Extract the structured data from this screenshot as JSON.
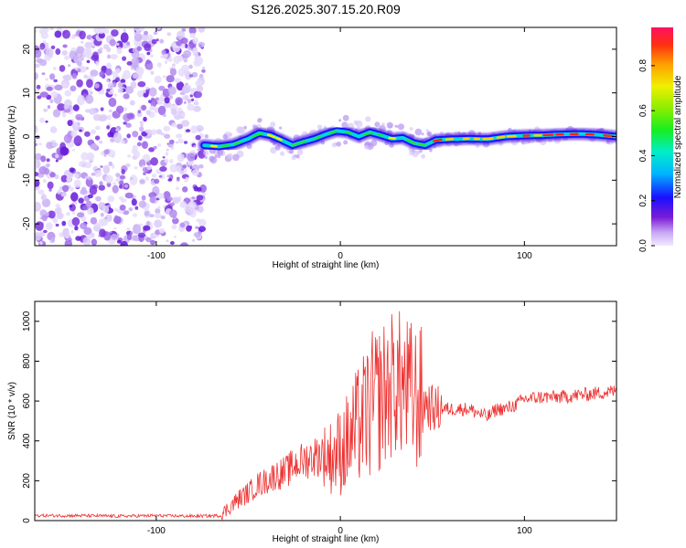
{
  "title": "S126.2025.307.15.20.R09",
  "chart_data": [
    {
      "type": "heatmap",
      "name": "spectrogram",
      "xlabel": "Height of straight line (km)",
      "ylabel": "Frequency (Hz)",
      "xlim": [
        -166,
        150
      ],
      "ylim": [
        -25,
        25
      ],
      "xticks": [
        -100,
        0,
        100
      ],
      "yticks": [
        -20,
        -10,
        0,
        10,
        20
      ],
      "noise_region_x": [
        -166,
        -74
      ],
      "ridge": {
        "x": [
          -74,
          -66,
          -58,
          -50,
          -44,
          -38,
          -32,
          -26,
          -20,
          -14,
          -8,
          -2,
          4,
          10,
          16,
          22,
          28,
          34,
          40,
          46,
          52,
          60,
          70,
          80,
          90,
          100,
          110,
          120,
          130,
          140,
          150
        ],
        "y": [
          -2.0,
          -2.3,
          -1.8,
          -0.5,
          0.8,
          0.3,
          -0.8,
          -2.0,
          -1.2,
          -0.5,
          0.5,
          1.3,
          1.0,
          0.0,
          1.0,
          0.3,
          -0.5,
          -0.3,
          -1.5,
          -2.0,
          -0.8,
          -0.6,
          -0.5,
          -0.6,
          0.0,
          0.2,
          0.3,
          0.5,
          0.6,
          0.4,
          0.0
        ]
      },
      "colorbar": {
        "label": "Normalized spectral amplitude",
        "ticks": [
          "0.0",
          "0.2",
          "0.4",
          "0.6",
          "0.8"
        ],
        "range": [
          0,
          0.97
        ]
      }
    },
    {
      "type": "line",
      "name": "snr",
      "xlabel": "Height of straight line (km)",
      "ylabel": "SNR (10 * v/v)",
      "xlim": [
        -166,
        150
      ],
      "ylim": [
        0,
        1100
      ],
      "xticks": [
        -100,
        0,
        100
      ],
      "yticks": [
        0,
        200,
        400,
        600,
        800,
        1000
      ],
      "color": "#ee3333",
      "series": [
        {
          "name": "SNR",
          "x": [
            -166,
            -140,
            -120,
            -100,
            -80,
            -65,
            -60,
            -55,
            -50,
            -45,
            -40,
            -35,
            -30,
            -25,
            -20,
            -15,
            -10,
            -5,
            0,
            5,
            10,
            15,
            20,
            25,
            30,
            35,
            40,
            45,
            50,
            55,
            60,
            65,
            70,
            75,
            80,
            85,
            90,
            95,
            100,
            110,
            120,
            130,
            140,
            150
          ],
          "y": [
            25,
            25,
            22,
            25,
            22,
            25,
            70,
            110,
            140,
            180,
            200,
            230,
            240,
            280,
            300,
            320,
            330,
            320,
            350,
            400,
            480,
            550,
            600,
            650,
            700,
            660,
            620,
            600,
            560,
            560,
            560,
            560,
            560,
            540,
            520,
            560,
            560,
            580,
            610,
            620,
            620,
            630,
            640,
            650
          ]
        }
      ]
    }
  ]
}
